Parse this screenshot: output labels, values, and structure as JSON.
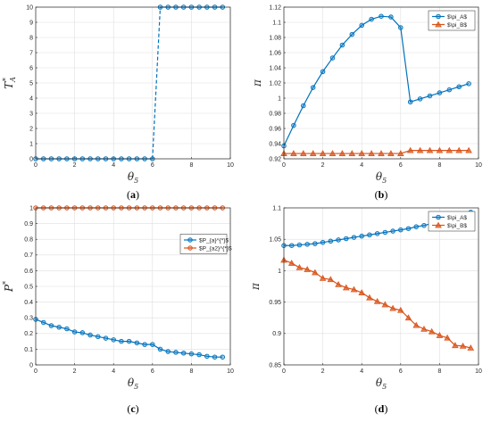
{
  "colors": {
    "blue": "#0072BD",
    "orange": "#D95319",
    "axis": "#262626",
    "grid": "#dfdfdf"
  },
  "chart_data": [
    {
      "panel": "a",
      "type": "line",
      "caption_letter": "a",
      "xlabel": "θ5",
      "ylabel": "T_A*",
      "xlim": [
        0,
        10
      ],
      "ylim": [
        0,
        10
      ],
      "xticks": [
        "0",
        "2",
        "4",
        "6",
        "8",
        "10"
      ],
      "yticks": [
        "0",
        "1",
        "2",
        "3",
        "4",
        "5",
        "6",
        "7",
        "8",
        "9",
        "10"
      ],
      "grid": true,
      "legend": null,
      "series": [
        {
          "color": "#0072BD",
          "marker": "circle",
          "dashed_jump": true,
          "x": [
            0,
            0.4,
            0.8,
            1.2,
            1.6,
            2.0,
            2.4,
            2.8,
            3.2,
            3.6,
            4.0,
            4.4,
            4.8,
            5.2,
            5.6,
            6.0,
            6.4,
            6.8,
            7.2,
            7.6,
            8.0,
            8.4,
            8.8,
            9.2,
            9.6
          ],
          "y": [
            0,
            0,
            0,
            0,
            0,
            0,
            0,
            0,
            0,
            0,
            0,
            0,
            0,
            0,
            0,
            0,
            10,
            10,
            10,
            10,
            10,
            10,
            10,
            10,
            10
          ]
        }
      ]
    },
    {
      "panel": "b",
      "type": "line",
      "caption_letter": "b",
      "xlabel": "θ5",
      "ylabel": "π",
      "xlim": [
        0,
        10
      ],
      "ylim": [
        0.92,
        1.12
      ],
      "xticks": [
        "0",
        "2",
        "4",
        "6",
        "8",
        "10"
      ],
      "yticks": [
        "0.92",
        "0.94",
        "0.96",
        "0.98",
        "1",
        "1.02",
        "1.04",
        "1.06",
        "1.08",
        "1.1",
        "1.12"
      ],
      "grid": true,
      "legend": "top-right",
      "series": [
        {
          "name": "$\\pi_A$",
          "color": "#0072BD",
          "marker": "circle",
          "x": [
            0,
            0.5,
            1.0,
            1.5,
            2.0,
            2.5,
            3.0,
            3.5,
            4.0,
            4.5,
            5.0,
            5.5,
            6.0,
            6.5,
            7.0,
            7.5,
            8.0,
            8.5,
            9.0,
            9.5
          ],
          "y": [
            0.937,
            0.964,
            0.99,
            1.014,
            1.035,
            1.053,
            1.07,
            1.084,
            1.096,
            1.104,
            1.108,
            1.107,
            1.093,
            0.995,
            0.999,
            1.003,
            1.007,
            1.011,
            1.015,
            1.019
          ]
        },
        {
          "name": "$\\pi_B$",
          "color": "#D95319",
          "marker": "triangle",
          "x": [
            0,
            0.5,
            1.0,
            1.5,
            2.0,
            2.5,
            3.0,
            3.5,
            4.0,
            4.5,
            5.0,
            5.5,
            6.0,
            6.5,
            7.0,
            7.5,
            8.0,
            8.5,
            9.0,
            9.5
          ],
          "y": [
            0.927,
            0.927,
            0.927,
            0.927,
            0.927,
            0.927,
            0.927,
            0.927,
            0.927,
            0.927,
            0.927,
            0.927,
            0.927,
            0.931,
            0.931,
            0.931,
            0.931,
            0.931,
            0.931,
            0.931
          ]
        }
      ]
    },
    {
      "panel": "c",
      "type": "line",
      "caption_letter": "c",
      "xlabel": "θ5",
      "ylabel": "P*",
      "xlim": [
        0,
        10
      ],
      "ylim": [
        0,
        1
      ],
      "xticks": [
        "0",
        "2",
        "4",
        "6",
        "8",
        "10"
      ],
      "yticks": [
        "0",
        "0.1",
        "0.2",
        "0.3",
        "0.4",
        "0.5",
        "0.6",
        "0.7",
        "0.8",
        "0.9",
        "1"
      ],
      "grid": true,
      "legend": "right",
      "series": [
        {
          "name": "$P_{a}^{*}$",
          "color": "#0072BD",
          "marker": "circle",
          "x": [
            0,
            0.4,
            0.8,
            1.2,
            1.6,
            2.0,
            2.4,
            2.8,
            3.2,
            3.6,
            4.0,
            4.4,
            4.8,
            5.2,
            5.6,
            6.0,
            6.4,
            6.8,
            7.2,
            7.6,
            8.0,
            8.4,
            8.8,
            9.2,
            9.6
          ],
          "y": [
            0.29,
            0.27,
            0.25,
            0.24,
            0.23,
            0.21,
            0.205,
            0.19,
            0.18,
            0.17,
            0.16,
            0.15,
            0.15,
            0.14,
            0.13,
            0.13,
            0.1,
            0.085,
            0.08,
            0.075,
            0.07,
            0.065,
            0.055,
            0.05,
            0.05
          ]
        },
        {
          "name": "$P_{a2}^{*}$",
          "color": "#D95319",
          "marker": "circle",
          "x": [
            0,
            0.4,
            0.8,
            1.2,
            1.6,
            2.0,
            2.4,
            2.8,
            3.2,
            3.6,
            4.0,
            4.4,
            4.8,
            5.2,
            5.6,
            6.0,
            6.4,
            6.8,
            7.2,
            7.6,
            8.0,
            8.4,
            8.8,
            9.2,
            9.6
          ],
          "y": [
            1,
            1,
            1,
            1,
            1,
            1,
            1,
            1,
            1,
            1,
            1,
            1,
            1,
            1,
            1,
            1,
            1,
            1,
            1,
            1,
            1,
            1,
            1,
            1,
            1
          ]
        }
      ]
    },
    {
      "panel": "d",
      "type": "line",
      "caption_letter": "d",
      "xlabel": "θ5",
      "ylabel": "π",
      "xlim": [
        0,
        10
      ],
      "ylim": [
        0.85,
        1.1
      ],
      "xticks": [
        "0",
        "2",
        "4",
        "6",
        "8",
        "10"
      ],
      "yticks": [
        "0.85",
        "0.9",
        "0.95",
        "1",
        "1.05",
        "1.1"
      ],
      "grid": true,
      "legend": "top-right",
      "series": [
        {
          "name": "$\\pi_A$",
          "color": "#0072BD",
          "marker": "circle",
          "x": [
            0,
            0.4,
            0.8,
            1.2,
            1.6,
            2.0,
            2.4,
            2.8,
            3.2,
            3.6,
            4.0,
            4.4,
            4.8,
            5.2,
            5.6,
            6.0,
            6.4,
            6.8,
            7.2,
            7.6,
            8.0,
            8.4,
            8.8,
            9.2,
            9.6
          ],
          "y": [
            1.04,
            1.04,
            1.041,
            1.042,
            1.043,
            1.045,
            1.047,
            1.049,
            1.051,
            1.053,
            1.055,
            1.057,
            1.059,
            1.061,
            1.063,
            1.065,
            1.067,
            1.07,
            1.072,
            1.075,
            1.077,
            1.08,
            1.083,
            1.087,
            1.093
          ]
        },
        {
          "name": "$\\pi_B$",
          "color": "#D95319",
          "marker": "triangle",
          "x": [
            0,
            0.4,
            0.8,
            1.2,
            1.6,
            2.0,
            2.4,
            2.8,
            3.2,
            3.6,
            4.0,
            4.4,
            4.8,
            5.2,
            5.6,
            6.0,
            6.4,
            6.8,
            7.2,
            7.6,
            8.0,
            8.4,
            8.8,
            9.2,
            9.6
          ],
          "y": [
            1.017,
            1.012,
            1.005,
            1.002,
            0.997,
            0.988,
            0.986,
            0.978,
            0.973,
            0.97,
            0.965,
            0.957,
            0.951,
            0.946,
            0.94,
            0.937,
            0.925,
            0.913,
            0.907,
            0.903,
            0.897,
            0.893,
            0.881,
            0.88,
            0.877
          ]
        }
      ]
    }
  ]
}
